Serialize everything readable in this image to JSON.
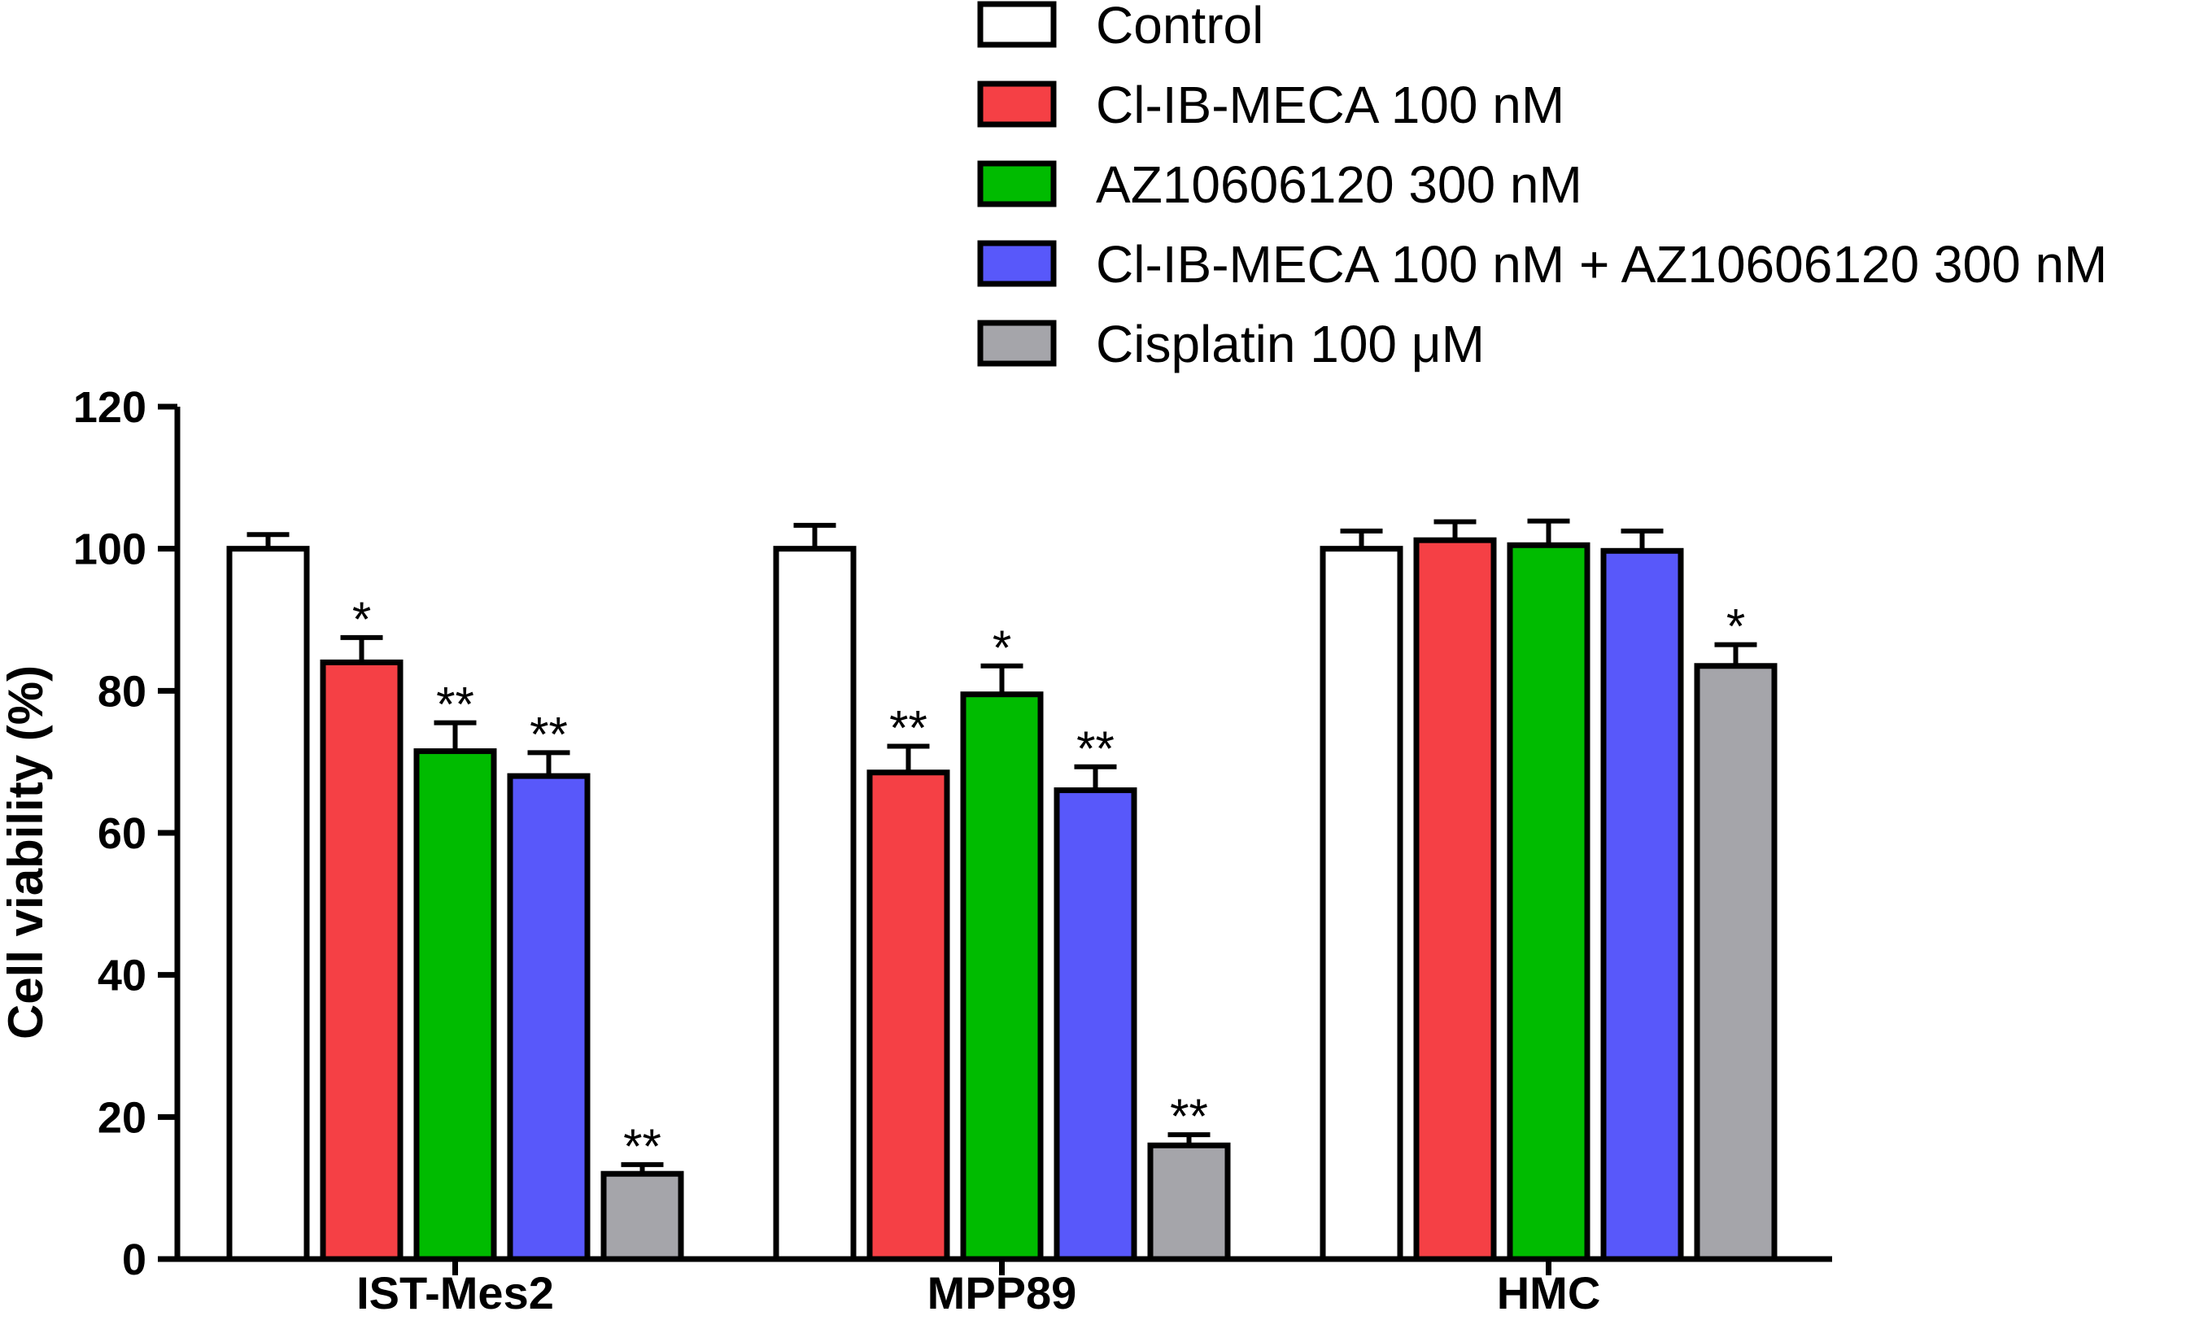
{
  "chart_data": {
    "type": "bar",
    "title": "",
    "xlabel": "",
    "ylabel": "Cell viability (%)",
    "ylim": [
      0,
      120
    ],
    "yticks": [
      "0",
      "20",
      "40",
      "60",
      "80",
      "100",
      "120"
    ],
    "categories": [
      "IST-Mes2",
      "MPP89",
      "HMC"
    ],
    "legend_position": "top-right",
    "series": [
      {
        "name": "Control",
        "color": "#ffffff",
        "values": [
          100,
          100,
          100
        ],
        "errors": [
          2,
          3.3,
          2.5
        ],
        "sig": [
          "",
          "",
          ""
        ]
      },
      {
        "name": "Cl-IB-MECA 100 nM",
        "color": "#f54045",
        "values": [
          84,
          68.5,
          101.2
        ],
        "errors": [
          3.5,
          3.7,
          2.6
        ],
        "sig": [
          "*",
          "**",
          ""
        ]
      },
      {
        "name": "AZ10606120 300 nM",
        "color": "#00bb00",
        "values": [
          71.5,
          79.5,
          100.5
        ],
        "errors": [
          4,
          4,
          3.4
        ],
        "sig": [
          "**",
          "*",
          ""
        ]
      },
      {
        "name": "Cl-IB-MECA 100 nM + AZ10606120 300 nM",
        "color": "#5858fa",
        "values": [
          68,
          66,
          99.7
        ],
        "errors": [
          3.3,
          3.3,
          2.8
        ],
        "sig": [
          "**",
          "**",
          ""
        ]
      },
      {
        "name": "Cisplatin 100 μM",
        "color": "#a5a5aa",
        "values": [
          12,
          16,
          83.5
        ],
        "errors": [
          1.3,
          1.5,
          3
        ],
        "sig": [
          "**",
          "**",
          "*"
        ]
      }
    ]
  }
}
